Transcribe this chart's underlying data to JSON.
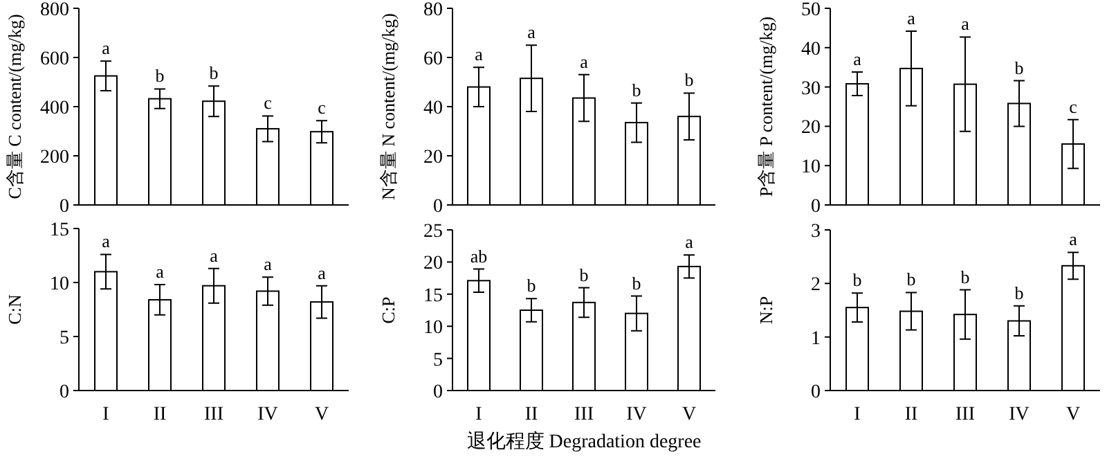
{
  "chart_data": [
    {
      "type": "bar",
      "ylabel": "C含量 C content/(mg/kg)",
      "categories": [
        null,
        null,
        null,
        null,
        null
      ],
      "tick_labels": "y",
      "ylim": [
        0,
        800
      ],
      "yticks": [
        0,
        200,
        400,
        600,
        800
      ],
      "color": "#ffffff",
      "values": [
        525,
        432,
        422,
        310,
        298
      ],
      "errors": [
        60,
        40,
        62,
        52,
        45
      ],
      "annotations": [
        "a",
        "b",
        "b",
        "c",
        "c"
      ]
    },
    {
      "type": "bar",
      "ylabel": "N含量 N content/(mg/kg)",
      "categories": [
        null,
        null,
        null,
        null,
        null
      ],
      "tick_labels": "y",
      "ylim": [
        0,
        80
      ],
      "yticks": [
        0,
        20,
        40,
        60,
        80
      ],
      "color": "#ffffff",
      "values": [
        48,
        51.5,
        43.5,
        33.5,
        36
      ],
      "errors": [
        8,
        13.5,
        9.5,
        8,
        9.5
      ],
      "annotations": [
        "a",
        "a",
        "a",
        "b",
        "b"
      ]
    },
    {
      "type": "bar",
      "ylabel": "P含量 P content/(mg/kg)",
      "categories": [
        null,
        null,
        null,
        null,
        null
      ],
      "tick_labels": "y",
      "ylim": [
        0,
        50
      ],
      "yticks": [
        0,
        10,
        20,
        30,
        40,
        50
      ],
      "color": "#ffffff",
      "values": [
        30.8,
        34.7,
        30.7,
        25.8,
        15.5
      ],
      "errors": [
        3,
        9.5,
        12,
        5.8,
        6.2
      ],
      "annotations": [
        "a",
        "a",
        "a",
        "b",
        "c"
      ]
    },
    {
      "type": "bar",
      "ylabel": "C:N",
      "categories": [
        "I",
        "II",
        "III",
        "IV",
        "V"
      ],
      "ylim": [
        0,
        15
      ],
      "yticks": [
        0,
        5,
        10,
        15
      ],
      "color": "#ffffff",
      "values": [
        11,
        8.4,
        9.7,
        9.2,
        8.2
      ],
      "errors": [
        1.6,
        1.4,
        1.6,
        1.3,
        1.5
      ],
      "annotations": [
        "a",
        "a",
        "a",
        "a",
        "a"
      ]
    },
    {
      "type": "bar",
      "ylabel": "C:P",
      "xlabel": "退化程度 Degradation degree",
      "categories": [
        "I",
        "II",
        "III",
        "IV",
        "V"
      ],
      "ylim": [
        0,
        25
      ],
      "yticks": [
        0,
        5,
        10,
        15,
        20,
        25
      ],
      "color": "#ffffff",
      "values": [
        17.1,
        12.5,
        13.7,
        12,
        19.3
      ],
      "errors": [
        1.8,
        1.8,
        2.3,
        2.7,
        1.8
      ],
      "annotations": [
        "ab",
        "b",
        "b",
        "b",
        "a"
      ]
    },
    {
      "type": "bar",
      "ylabel": "N:P",
      "categories": [
        "I",
        "II",
        "III",
        "IV",
        "V"
      ],
      "ylim": [
        0,
        3
      ],
      "yticks": [
        0,
        1,
        2,
        3
      ],
      "color": "#ffffff",
      "values": [
        1.55,
        1.48,
        1.42,
        1.3,
        2.33
      ],
      "errors": [
        0.27,
        0.35,
        0.46,
        0.28,
        0.25
      ],
      "annotations": [
        "b",
        "b",
        "b",
        "b",
        "a"
      ]
    }
  ]
}
